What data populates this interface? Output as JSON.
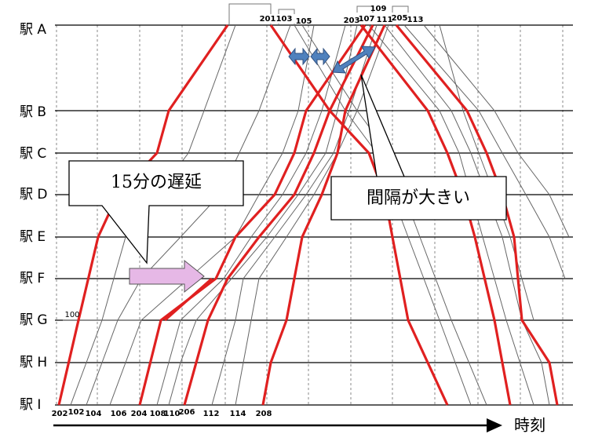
{
  "stations": [
    "駅 A",
    "駅 B",
    "駅 C",
    "駅 D",
    "駅 E",
    "駅 F",
    "駅 G",
    "駅 H",
    "駅 I"
  ],
  "top_trains": [
    "201",
    "103",
    "105",
    "203",
    "107",
    "109",
    "111",
    "205",
    "113"
  ],
  "bottom_trains": [
    "202",
    "102",
    "104",
    "106",
    "204",
    "108",
    "110",
    "206",
    "112",
    "114",
    "208"
  ],
  "train_100": "100",
  "callouts": {
    "delay": "15分の遅延",
    "interval": "間隔が大きい"
  },
  "time_axis": "時刻"
}
